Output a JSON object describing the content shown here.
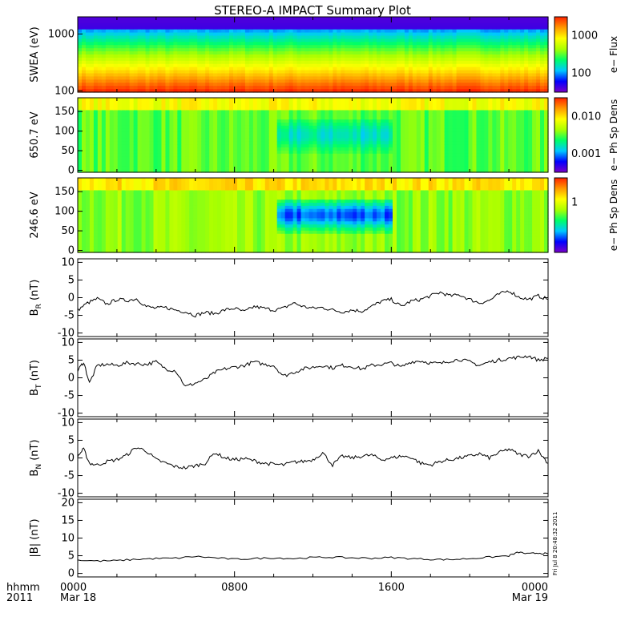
{
  "title": "STEREO-A IMPACT Summary Plot",
  "footer": {
    "time_label": "hhmm",
    "year_label": "2011",
    "ticks": [
      {
        "hhmm": "0000",
        "date": "Mar 18"
      },
      {
        "hhmm": "0800",
        "date": ""
      },
      {
        "hhmm": "1600",
        "date": ""
      },
      {
        "hhmm": "0000",
        "date": "Mar 19"
      }
    ]
  },
  "stamp": "Fri Jul  8 20:48:32 2011",
  "chart_data": [
    {
      "type": "heatmap",
      "panel_id": "swea",
      "ylabel": "SWEA (eV)",
      "yscale": "log",
      "ylim": [
        95,
        2000
      ],
      "yticks": [
        "100",
        "1000"
      ],
      "colorbar": {
        "label": "e− Flux",
        "scale": "log",
        "ticks": [
          "100",
          "1000"
        ],
        "range": [
          30,
          6000
        ]
      },
      "x_hours": [
        0,
        24
      ],
      "description_values": {
        "energy_eV": [
          100,
          150,
          250,
          400,
          600,
          1000,
          1500,
          2000
        ],
        "flux": [
          6000,
          3500,
          1800,
          900,
          400,
          150,
          60,
          30
        ]
      }
    },
    {
      "type": "heatmap",
      "panel_id": "pad650",
      "ylabel": "650.7 eV",
      "ylim": [
        -5,
        185
      ],
      "yticks": [
        "0",
        "50",
        "100",
        "150"
      ],
      "colorbar": {
        "label": "e− Ph Sp Dens",
        "scale": "log",
        "ticks": [
          "0.001",
          "0.010"
        ],
        "range": [
          0.001,
          0.03
        ]
      },
      "x_hours": [
        0,
        24
      ]
    },
    {
      "type": "heatmap",
      "panel_id": "pad246",
      "ylabel": "246.6 eV",
      "ylim": [
        -5,
        185
      ],
      "yticks": [
        "0",
        "50",
        "100",
        "150"
      ],
      "colorbar": {
        "label": "e− Ph Sp Dens",
        "scale": "log",
        "ticks": [
          "1"
        ],
        "range": [
          0.1,
          2.0
        ]
      },
      "x_hours": [
        0,
        24
      ]
    },
    {
      "type": "line",
      "panel_id": "br",
      "ylabel_main": "B",
      "ylabel_sub": "R",
      "ylabel_unit": " (nT)",
      "ylim": [
        -11,
        11
      ],
      "yticks": [
        "10",
        "5",
        "0",
        "-5",
        "-10"
      ],
      "x": [
        0,
        0.5,
        1,
        1.5,
        2,
        2.5,
        3,
        3.5,
        4,
        4.5,
        5,
        5.5,
        6,
        6.5,
        7,
        7.5,
        8,
        8.5,
        9,
        9.5,
        10,
        10.5,
        11,
        11.5,
        12,
        12.5,
        13,
        13.5,
        14,
        14.5,
        15,
        15.5,
        16,
        16.5,
        17,
        17.5,
        18,
        18.5,
        19,
        19.5,
        20,
        20.5,
        21,
        21.5,
        22,
        22.5,
        23,
        23.5,
        24
      ],
      "y": [
        -3.5,
        -1.5,
        -0.3,
        -1.8,
        -0.5,
        -0.8,
        -0.3,
        -2.5,
        -3.0,
        -2.8,
        -3.5,
        -4.0,
        -5.0,
        -4.2,
        -4.5,
        -3.5,
        -3.0,
        -4.0,
        -2.5,
        -3.0,
        -3.5,
        -3.0,
        -1.5,
        -2.5,
        -3.0,
        -2.8,
        -3.5,
        -4.0,
        -3.5,
        -3.8,
        -2.5,
        -1.0,
        -0.5,
        -2.5,
        -1.0,
        -0.5,
        0.5,
        1.5,
        0.5,
        0.8,
        -0.5,
        -1.5,
        -0.8,
        1.0,
        2.0,
        0.2,
        -0.5,
        0.5,
        -0.5
      ]
    },
    {
      "type": "line",
      "panel_id": "bt",
      "ylabel_main": "B",
      "ylabel_sub": "T",
      "ylabel_unit": " (nT)",
      "ylim": [
        -11,
        11
      ],
      "yticks": [
        "10",
        "5",
        "0",
        "-5",
        "-10"
      ],
      "x": [
        0,
        0.3,
        0.6,
        1,
        1.5,
        2,
        2.5,
        3,
        3.5,
        4,
        4.5,
        5,
        5.5,
        6,
        6.5,
        7,
        7.5,
        8,
        8.5,
        9,
        9.5,
        10,
        10.5,
        11,
        11.5,
        12,
        12.5,
        13,
        13.5,
        14,
        14.5,
        15,
        15.5,
        16,
        16.5,
        17,
        17.5,
        18,
        18.5,
        19,
        19.5,
        20,
        20.5,
        21,
        21.5,
        22,
        22.5,
        23,
        23.5,
        24
      ],
      "y": [
        2.0,
        4.5,
        -1.5,
        3.5,
        3.8,
        3.5,
        4.2,
        4.0,
        3.8,
        4.5,
        2.5,
        2.0,
        -2.5,
        -1.5,
        -0.5,
        1.5,
        2.5,
        3.0,
        3.5,
        4.5,
        3.8,
        3.5,
        0.5,
        1.5,
        2.5,
        3.0,
        3.5,
        2.8,
        3.5,
        3.2,
        2.5,
        3.5,
        3.8,
        4.2,
        3.0,
        4.5,
        4.8,
        4.2,
        4.0,
        4.8,
        5.2,
        4.5,
        3.5,
        4.5,
        5.0,
        5.5,
        5.8,
        6.2,
        5.0,
        5.5
      ]
    },
    {
      "type": "line",
      "panel_id": "bn",
      "ylabel_main": "B",
      "ylabel_sub": "N",
      "ylabel_unit": " (nT)",
      "ylim": [
        -11,
        11
      ],
      "yticks": [
        "10",
        "5",
        "0",
        "-5",
        "-10"
      ],
      "x": [
        0,
        0.3,
        0.6,
        1,
        1.5,
        2,
        2.5,
        3,
        3.5,
        4,
        4.5,
        5,
        5.5,
        6,
        6.5,
        7,
        7.5,
        8,
        8.5,
        9,
        9.5,
        10,
        10.5,
        11,
        11.5,
        12,
        12.5,
        13,
        13.5,
        14,
        14.5,
        15,
        15.5,
        16,
        16.5,
        17,
        17.5,
        18,
        18.5,
        19,
        19.5,
        20,
        20.5,
        21,
        21.5,
        22,
        22.5,
        23,
        23.5,
        24
      ],
      "y": [
        0.5,
        2.5,
        -1.5,
        -2.0,
        -1.0,
        -0.5,
        0.8,
        3.0,
        2.0,
        -0.5,
        -1.5,
        -2.5,
        -2.8,
        -2.2,
        -1.5,
        1.5,
        0.0,
        -0.5,
        -0.2,
        -0.8,
        -1.5,
        -1.8,
        -2.0,
        -1.2,
        -1.0,
        -0.5,
        1.5,
        -2.0,
        0.5,
        0.0,
        0.5,
        0.8,
        -0.5,
        0.0,
        0.5,
        0.2,
        -1.5,
        -2.0,
        -1.0,
        -0.5,
        0.0,
        0.5,
        1.2,
        0.0,
        1.5,
        2.5,
        1.0,
        0.5,
        2.0,
        -1.5
      ]
    },
    {
      "type": "line",
      "panel_id": "bmag",
      "ylabel_main": "|B|",
      "ylabel_sub": "",
      "ylabel_unit": " (nT)",
      "ylim": [
        -1,
        21
      ],
      "yticks": [
        "20",
        "15",
        "10",
        "5",
        "0"
      ],
      "x": [
        0,
        1,
        2,
        3,
        4,
        5,
        6,
        7,
        8,
        9,
        10,
        11,
        12,
        13,
        14,
        15,
        16,
        17,
        18,
        19,
        20,
        21,
        22,
        22.5,
        23,
        23.5,
        24
      ],
      "y": [
        3.8,
        3.5,
        3.6,
        4.0,
        4.2,
        4.3,
        4.8,
        4.4,
        4.0,
        4.2,
        4.4,
        4.2,
        4.5,
        4.6,
        4.4,
        4.3,
        4.5,
        4.2,
        4.0,
        3.9,
        4.2,
        4.6,
        5.0,
        6.0,
        5.5,
        5.8,
        5.5
      ]
    }
  ],
  "colors": {
    "colorbar_stops": [
      "#7a00c8",
      "#0000ff",
      "#00c8ff",
      "#00ff66",
      "#aaff00",
      "#ffff00",
      "#ff9900",
      "#ff2200"
    ]
  }
}
